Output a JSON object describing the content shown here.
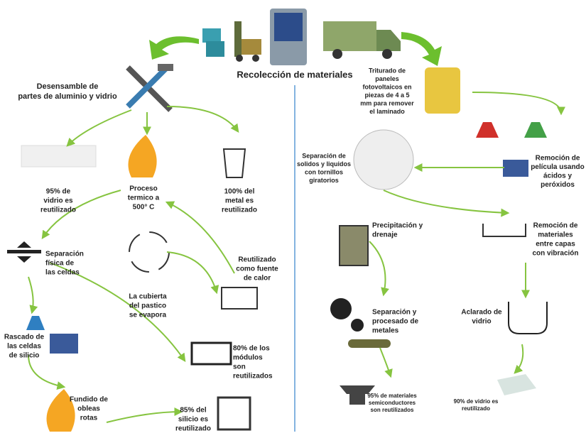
{
  "title": "Recolección de materiales",
  "steps": [
    {
      "lines": [
        "Desensamble de",
        "partes de aluminio y vidrio"
      ]
    },
    {
      "lines": [
        "95% de",
        "vidrio es",
        "reutilizado"
      ]
    },
    {
      "lines": [
        "Proceso",
        "termico a",
        "500° C"
      ]
    },
    {
      "lines": [
        "100% del",
        "metal es",
        "reutilizado"
      ]
    },
    {
      "lines": [
        "Separación",
        "física de",
        "las celdas"
      ]
    },
    {
      "lines": [
        "Reutilizado",
        "como fuente",
        "de calor"
      ]
    },
    {
      "lines": [
        "La cubierta",
        "del pastico",
        "se evapora"
      ]
    },
    {
      "lines": [
        "Rascado de",
        "las celdas",
        "de silicio"
      ]
    },
    {
      "lines": [
        "80% de los",
        "módulos",
        "son",
        "reutilizados"
      ]
    },
    {
      "lines": [
        "Fundido de",
        "obleas",
        "rotas"
      ]
    },
    {
      "lines": [
        "85% del",
        "silicio es",
        "reutilizado"
      ]
    },
    {
      "lines": [
        "Triturado de",
        "paneles",
        "fotovoltaicos en",
        "piezas de 4 a 5",
        "mm para remover",
        "el laminado"
      ]
    },
    {
      "lines": [
        "Remoción de",
        "película usando",
        "ácidos y",
        "peróxidos"
      ]
    },
    {
      "lines": [
        "Separación de",
        "solidos y liquidos",
        "con tornillos",
        "giratorios"
      ]
    },
    {
      "lines": [
        "Precipitación y",
        "drenaje"
      ]
    },
    {
      "lines": [
        "Remoción de",
        "materiales",
        "entre capas",
        "con vibración"
      ]
    },
    {
      "lines": [
        "Separación y",
        "procesado de",
        "metales"
      ]
    },
    {
      "lines": [
        "Aclarado de",
        "vidrio"
      ]
    },
    {
      "lines": [
        "95% de materiales",
        "semiconductores",
        "son reutilizados"
      ]
    },
    {
      "lines": [
        "90% de vidrio es",
        "reutilizado"
      ]
    }
  ]
}
